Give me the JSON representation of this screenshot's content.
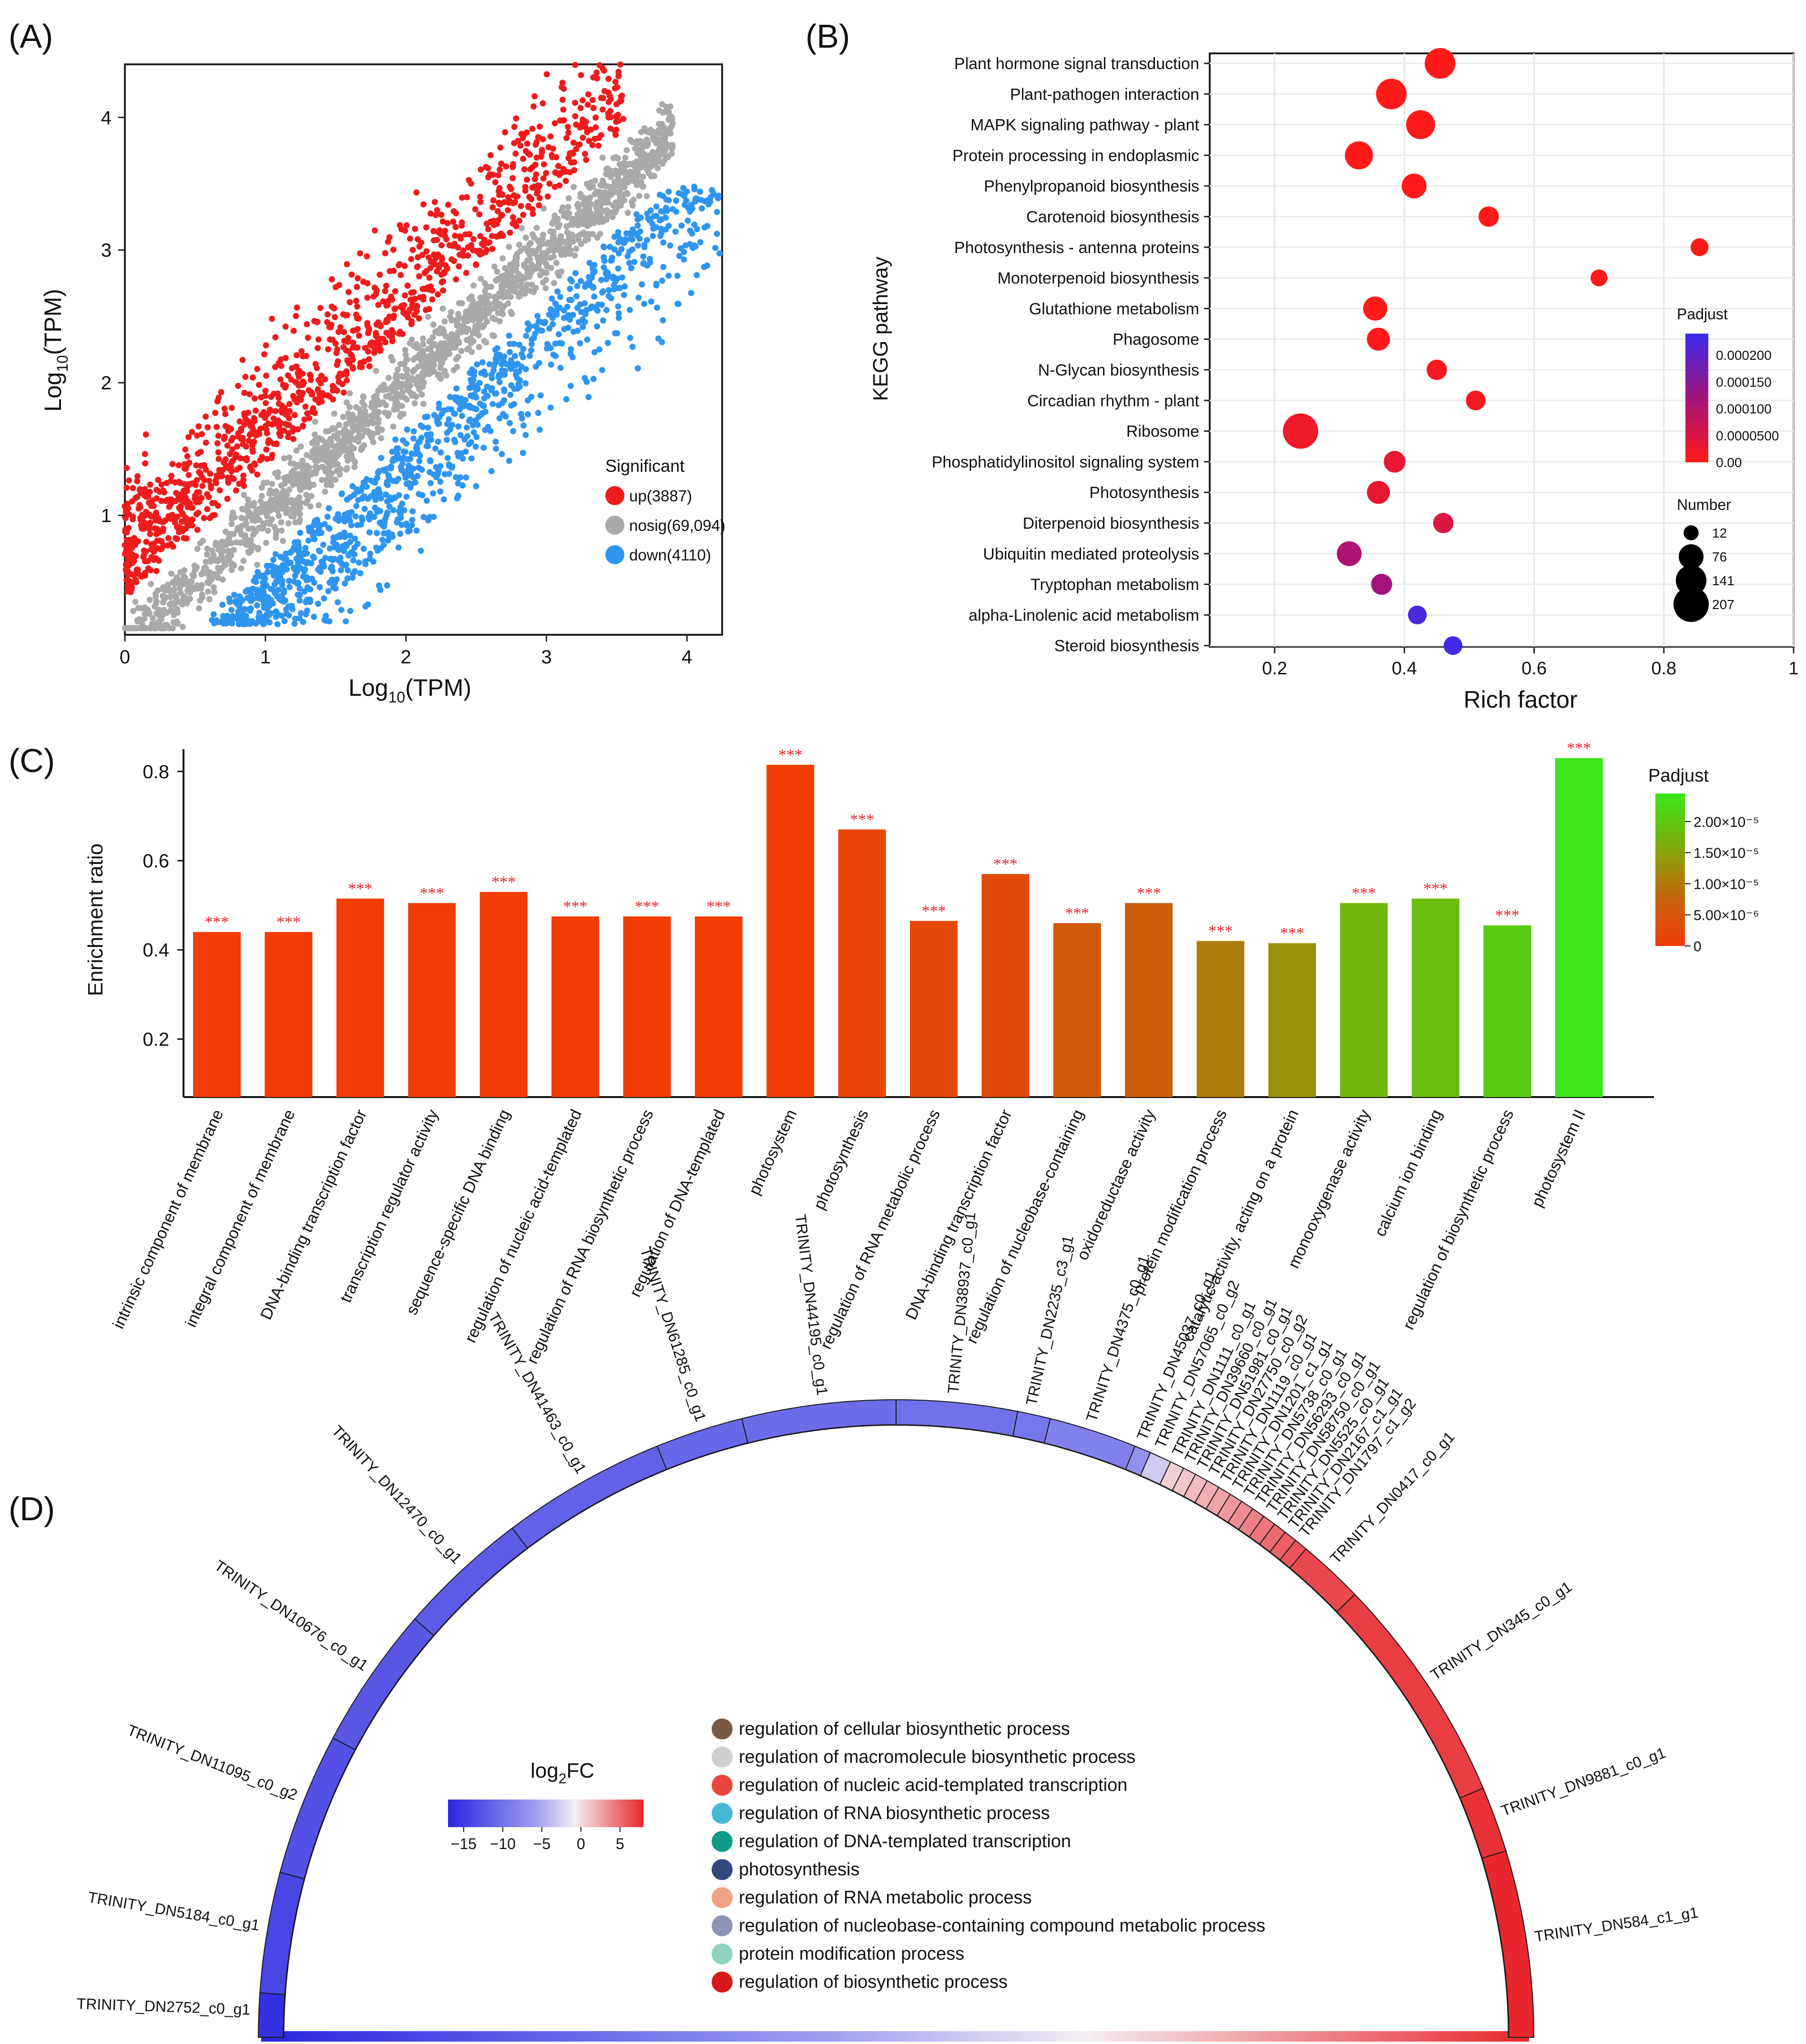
{
  "panels": {
    "a": "(A)",
    "b": "(B)",
    "c": "(C)",
    "d": "(D)"
  },
  "chart_data": [
    {
      "id": "A",
      "type": "scatter",
      "xlabel_main": "Log",
      "xlabel_sub": "10",
      "xlabel_tail": "(TPM)",
      "ylabel_main": "Log",
      "ylabel_sub": "10",
      "ylabel_tail": "(TPM)",
      "xlim": [
        0,
        4.25
      ],
      "ylim": [
        0.1,
        4.4
      ],
      "xticks": [
        "0",
        "1",
        "2",
        "3",
        "4"
      ],
      "yticks": [
        "1",
        "2",
        "3",
        "4"
      ],
      "legend_title": "Significant",
      "legend": [
        {
          "name": "up(3887)",
          "color": "#ee1c1c",
          "count": 3887
        },
        {
          "name": "nosig(69,094)",
          "color": "#a9a9a9",
          "count": 69094
        },
        {
          "name": "down(4110)",
          "color": "#2f95ef",
          "count": 4110
        }
      ]
    },
    {
      "id": "B",
      "type": "scatter",
      "xlabel": "Rich factor",
      "ylabel": "KEGG pathway",
      "xlim": [
        0.1,
        1.0
      ],
      "xticks": [
        "0.2",
        "0.4",
        "0.6",
        "0.8",
        "1"
      ],
      "pathways": [
        {
          "name": "Plant hormone signal transduction",
          "rich": 0.455,
          "number": 141,
          "padj": 0.0
        },
        {
          "name": "Plant-pathogen interaction",
          "rich": 0.38,
          "number": 141,
          "padj": 0.0
        },
        {
          "name": "MAPK signaling pathway - plant",
          "rich": 0.425,
          "number": 120,
          "padj": 0.0
        },
        {
          "name": "Protein processing in endoplasmic",
          "rich": 0.33,
          "number": 110,
          "padj": 0.0
        },
        {
          "name": "Phenylpropanoid biosynthesis",
          "rich": 0.415,
          "number": 76,
          "padj": 0.0
        },
        {
          "name": "Carotenoid biosynthesis",
          "rich": 0.53,
          "number": 40,
          "padj": 0.0
        },
        {
          "name": "Photosynthesis - antenna proteins",
          "rich": 0.855,
          "number": 25,
          "padj": 0.0
        },
        {
          "name": "Monoterpenoid biosynthesis",
          "rich": 0.7,
          "number": 20,
          "padj": 0.0
        },
        {
          "name": "Glutathione metabolism",
          "rich": 0.355,
          "number": 70,
          "padj": 0.0
        },
        {
          "name": "Phagosome",
          "rich": 0.36,
          "number": 60,
          "padj": 0.0
        },
        {
          "name": "N-Glycan biosynthesis",
          "rich": 0.45,
          "number": 40,
          "padj": 1e-05
        },
        {
          "name": "Circadian rhythm - plant",
          "rich": 0.51,
          "number": 36,
          "padj": 1e-05
        },
        {
          "name": "Ribosome",
          "rich": 0.24,
          "number": 207,
          "padj": 2e-05
        },
        {
          "name": "Phosphatidylinositol signaling system",
          "rich": 0.385,
          "number": 50,
          "padj": 3e-05
        },
        {
          "name": "Photosynthesis",
          "rich": 0.36,
          "number": 60,
          "padj": 3e-05
        },
        {
          "name": "Diterpenoid biosynthesis",
          "rich": 0.46,
          "number": 40,
          "padj": 5e-05
        },
        {
          "name": "Ubiquitin mediated proteolysis",
          "rich": 0.315,
          "number": 76,
          "padj": 0.00011
        },
        {
          "name": "Tryptophan metabolism",
          "rich": 0.365,
          "number": 45,
          "padj": 0.00012
        },
        {
          "name": "alpha-Linolenic acid metabolism",
          "rich": 0.42,
          "number": 30,
          "padj": 0.00022
        },
        {
          "name": "Steroid biosynthesis",
          "rich": 0.475,
          "number": 30,
          "padj": 0.00023
        }
      ],
      "padj_title": "Padjust",
      "padj_ticks": [
        {
          "label": "0.000200",
          "v": 0.0002
        },
        {
          "label": "0.000150",
          "v": 0.00015
        },
        {
          "label": "0.000100",
          "v": 0.0001
        },
        {
          "label": "0.0000500",
          "v": 5e-05
        },
        {
          "label": "0.00",
          "v": 0
        }
      ],
      "padj_range": [
        0,
        0.00024
      ],
      "number_title": "Number",
      "number_legend": [
        "12",
        "76",
        "141",
        "207"
      ]
    },
    {
      "id": "C",
      "type": "bar",
      "ylabel": "Enrichment  ratio",
      "ylim": [
        0.07,
        0.85
      ],
      "yticks": [
        "0.2",
        "0.4",
        "0.6",
        "0.8"
      ],
      "sig_label": "***",
      "categories": [
        "intrinsic component of membrane",
        "integral component of membrane",
        "DNA-binding transcription factor",
        "transcription regulator activity",
        "sequence-specific DNA binding",
        "regulation of nucleic acid-templated",
        "regulation of RNA biosynthetic process",
        "regulation of DNA-templated",
        "photosystem",
        "photosynthesis",
        "regulation of RNA metabolic process",
        "DNA-binding transcription factor",
        "regulation of nucleobase-containing",
        "oxidoreductase activity",
        "protein modification process",
        "catalytic activity, acting on a protein",
        "monooxygenase activity",
        "calcium ion binding",
        "regulation of biosynthetic process",
        "photosystem II"
      ],
      "values": [
        0.44,
        0.44,
        0.515,
        0.505,
        0.53,
        0.475,
        0.475,
        0.475,
        0.815,
        0.67,
        0.465,
        0.57,
        0.46,
        0.505,
        0.42,
        0.415,
        0.505,
        0.515,
        0.455,
        0.83
      ],
      "padj": [
        0.0,
        0.0,
        0.0,
        0.0,
        0.0,
        0.0,
        0.0,
        0.0,
        3e-07,
        1.8e-06,
        2.6e-06,
        2.8e-06,
        5.8e-06,
        6.4e-06,
        1.05e-05,
        1.28e-05,
        1.78e-05,
        1.86e-05,
        2.06e-05,
        2.41e-05
      ],
      "padj_title": "Padjust",
      "padj_ticks": [
        {
          "label": "2.00×10⁻⁵",
          "v": 2e-05
        },
        {
          "label": "1.50×10⁻⁵",
          "v": 1.5e-05
        },
        {
          "label": "1.00×10⁻⁵",
          "v": 1e-05
        },
        {
          "label": "5.00×10⁻⁶",
          "v": 5e-06
        },
        {
          "label": "0",
          "v": 0
        }
      ],
      "padj_range": [
        0,
        2.45e-05
      ]
    },
    {
      "id": "D",
      "type": "other",
      "colorbar_title_main": "log",
      "colorbar_title_sub": "2",
      "colorbar_title_tail": "FC",
      "colorbar_ticks": [
        "−15",
        "−10",
        "−5",
        "0",
        "5"
      ],
      "fc_range": [
        -17,
        8
      ],
      "genes": [
        {
          "name": "TRINITY_DN2752_c0_g1",
          "fc": -16
        },
        {
          "name": "TRINITY_DN5184_c0_g1",
          "fc": -14
        },
        {
          "name": "TRINITY_DN11095_c0_g2",
          "fc": -13
        },
        {
          "name": "TRINITY_DN10676_c0_g1",
          "fc": -12.5
        },
        {
          "name": "TRINITY_DN12470_c0_g1",
          "fc": -12
        },
        {
          "name": "TRINITY_DN41463_c0_g1",
          "fc": -11.5
        },
        {
          "name": "TRINITY_DN61285_c0_g1",
          "fc": -11
        },
        {
          "name": "TRINITY_DN44195_c0_g1",
          "fc": -10.5
        },
        {
          "name": "TRINITY_DN38937_c0_g1",
          "fc": -10
        },
        {
          "name": "TRINITY_DN2235_c3_g1",
          "fc": -9.5
        },
        {
          "name": "TRINITY_DN4375_c0_g1",
          "fc": -8.5
        },
        {
          "name": "TRINITY_DN45037_c0_g1",
          "fc": -7
        },
        {
          "name": "TRINITY_DN57065_c0_g2",
          "fc": -3
        },
        {
          "name": "TRINITY_DN1111_c0_g1",
          "fc": 0.5
        },
        {
          "name": "TRINITY_DN39660_c0_g1",
          "fc": 1
        },
        {
          "name": "TRINITY_DN51981_c0_g1",
          "fc": 1.5
        },
        {
          "name": "TRINITY_DN27750_c0_g2",
          "fc": 2
        },
        {
          "name": "TRINITY_DN1119_c0_g1",
          "fc": 2.5
        },
        {
          "name": "TRINITY_DN1201_c1_g1",
          "fc": 3
        },
        {
          "name": "TRINITY_DN5738_c0_g1",
          "fc": 3.5
        },
        {
          "name": "TRINITY_DN56293_c0_g1",
          "fc": 4
        },
        {
          "name": "TRINITY_DN58750_c0_g1",
          "fc": 4.5
        },
        {
          "name": "TRINITY_DN5525_c0_g1",
          "fc": 5
        },
        {
          "name": "TRINITY_DN2167_c1_g1",
          "fc": 5.5
        },
        {
          "name": "TRINITY_DN1797_c1_g2",
          "fc": 6
        },
        {
          "name": "TRINITY_DN0417_c0_g1",
          "fc": 6.5
        },
        {
          "name": "TRINITY_DN345_c0_g1",
          "fc": 7
        },
        {
          "name": "TRINITY_DN9881_c0_g1",
          "fc": 7.5
        },
        {
          "name": "TRINITY_DN584_c1_g1",
          "fc": 8
        }
      ],
      "legend": [
        {
          "name": "regulation of cellular biosynthetic process",
          "color": "#7a5a44"
        },
        {
          "name": "regulation of macromolecule biosynthetic process",
          "color": "#cfcfcf"
        },
        {
          "name": "regulation of nucleic acid-templated transcription",
          "color": "#e8453c"
        },
        {
          "name": "regulation of RNA biosynthetic process",
          "color": "#46b8d6"
        },
        {
          "name": "regulation of DNA-templated transcription",
          "color": "#0f9c86"
        },
        {
          "name": "photosynthesis",
          "color": "#33497e"
        },
        {
          "name": "regulation of RNA metabolic process",
          "color": "#f0a385"
        },
        {
          "name": "regulation of nucleobase-containing compound metabolic process",
          "color": "#8c93b8"
        },
        {
          "name": "protein modification process",
          "color": "#8fd2c0"
        },
        {
          "name": "regulation of biosynthetic process",
          "color": "#d7191c"
        }
      ]
    }
  ]
}
